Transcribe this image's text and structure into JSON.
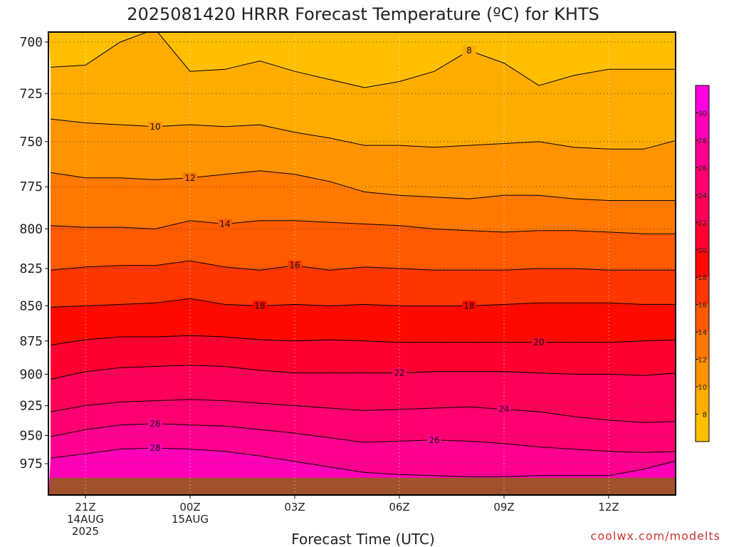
{
  "chart_data": {
    "type": "heatmap",
    "title": "2025081420 HRRR Forecast Temperature (ºC) for KHTS",
    "xlabel": "Forecast Time (UTC)",
    "ylabel": "",
    "credit": "coolwx.com/modelts",
    "x_ticks": [
      {
        "hour": 0,
        "lines": [
          "21Z",
          "14AUG",
          "2025"
        ]
      },
      {
        "hour": 3,
        "lines": [
          "00Z",
          "15AUG"
        ]
      },
      {
        "hour": 6,
        "lines": [
          "03Z"
        ]
      },
      {
        "hour": 9,
        "lines": [
          "06Z"
        ]
      },
      {
        "hour": 12,
        "lines": [
          "09Z"
        ]
      },
      {
        "hour": 15,
        "lines": [
          "12Z"
        ]
      }
    ],
    "xlim": [
      -1,
      17
    ],
    "ylim": [
      693,
      1000
    ],
    "y_ticks": [
      700,
      725,
      750,
      775,
      800,
      825,
      850,
      875,
      900,
      925,
      950,
      975
    ],
    "y_scale": "log",
    "grid": true,
    "surface_pressure": [
      988,
      988,
      988,
      988,
      988,
      988,
      988,
      988,
      988,
      988,
      988,
      988,
      988,
      988,
      988,
      988,
      988,
      988,
      988
    ],
    "contour_levels": [
      {
        "level": 8,
        "p": [
          712,
          711,
          700,
          694,
          714,
          713,
          709,
          714,
          718,
          722,
          719,
          714,
          704,
          710,
          721,
          716,
          713,
          713,
          713
        ]
      },
      {
        "level": 10,
        "p": [
          738,
          740,
          741,
          742,
          741,
          742,
          741,
          745,
          748,
          752,
          752,
          753,
          752,
          751,
          750,
          753,
          754,
          754,
          749
        ]
      },
      {
        "level": 12,
        "p": [
          767,
          770,
          770,
          771,
          770,
          768,
          766,
          768,
          772,
          778,
          780,
          781,
          782,
          780,
          780,
          782,
          783,
          783,
          783
        ]
      },
      {
        "level": 14,
        "p": [
          798,
          799,
          799,
          800,
          795,
          797,
          795,
          795,
          796,
          797,
          798,
          800,
          801,
          802,
          801,
          801,
          802,
          803,
          803
        ]
      },
      {
        "level": 16,
        "p": [
          826,
          824,
          823,
          823,
          820,
          824,
          826,
          823,
          826,
          824,
          825,
          826,
          826,
          826,
          825,
          825,
          826,
          826,
          826
        ]
      },
      {
        "level": 18,
        "p": [
          851,
          850,
          849,
          848,
          845,
          849,
          850,
          849,
          850,
          849,
          850,
          850,
          850,
          849,
          848,
          848,
          848,
          849,
          849
        ]
      },
      {
        "level": 20,
        "p": [
          878,
          874,
          872,
          872,
          871,
          872,
          874,
          875,
          874,
          875,
          876,
          876,
          876,
          876,
          876,
          876,
          876,
          875,
          874
        ]
      },
      {
        "level": 22,
        "p": [
          904,
          898,
          895,
          894,
          893,
          894,
          897,
          899,
          899,
          899,
          899,
          898,
          898,
          898,
          899,
          900,
          900,
          901,
          899
        ]
      },
      {
        "level": 24,
        "p": [
          930,
          925,
          922,
          921,
          920,
          921,
          923,
          925,
          927,
          929,
          928,
          927,
          926,
          928,
          930,
          934,
          937,
          939,
          938
        ]
      },
      {
        "level": 26,
        "p": [
          951,
          945,
          941,
          940,
          941,
          942,
          945,
          948,
          952,
          956,
          955,
          954,
          955,
          957,
          960,
          962,
          964,
          965,
          964
        ]
      },
      {
        "level": 28,
        "p": [
          970,
          966,
          962,
          961,
          962,
          964,
          968,
          973,
          978,
          983,
          985,
          986,
          987,
          987,
          986,
          986,
          986,
          980,
          972
        ]
      }
    ],
    "contour_labels": [
      {
        "level": 8,
        "hour": 11.0
      },
      {
        "level": 10,
        "hour": 2.0
      },
      {
        "level": 12,
        "hour": 3.0
      },
      {
        "level": 14,
        "hour": 4.0
      },
      {
        "level": 16,
        "hour": 6.0
      },
      {
        "level": 18,
        "hour": 5.0
      },
      {
        "level": 18,
        "hour": 11.0
      },
      {
        "level": 20,
        "hour": 13.0
      },
      {
        "level": 22,
        "hour": 9.0
      },
      {
        "level": 24,
        "hour": 12.0
      },
      {
        "level": 26,
        "hour": 2.0
      },
      {
        "level": 26,
        "hour": 10.0
      },
      {
        "level": 28,
        "hour": 2.0
      }
    ],
    "colorbar": {
      "bands": [
        {
          "min": 6,
          "max": 8,
          "color": "#ffbf00"
        },
        {
          "min": 8,
          "max": 10,
          "color": "#ffac00"
        },
        {
          "min": 10,
          "max": 12,
          "color": "#ff9400"
        },
        {
          "min": 12,
          "max": 14,
          "color": "#ff7800"
        },
        {
          "min": 14,
          "max": 16,
          "color": "#ff5a00"
        },
        {
          "min": 16,
          "max": 18,
          "color": "#ff3600"
        },
        {
          "min": 18,
          "max": 20,
          "color": "#ff0a00"
        },
        {
          "min": 20,
          "max": 22,
          "color": "#ff0030"
        },
        {
          "min": 22,
          "max": 24,
          "color": "#ff0058"
        },
        {
          "min": 24,
          "max": 26,
          "color": "#ff0070"
        },
        {
          "min": 26,
          "max": 28,
          "color": "#ff0090"
        },
        {
          "min": 28,
          "max": 30,
          "color": "#ff00b8"
        },
        {
          "min": 30,
          "max": 32,
          "color": "#ff00e0"
        }
      ],
      "ticks": [
        8,
        10,
        12,
        14,
        16,
        18,
        20,
        22,
        24,
        26,
        28,
        30
      ]
    },
    "ground_color": "#a0522d",
    "frame_color": "#000000"
  }
}
